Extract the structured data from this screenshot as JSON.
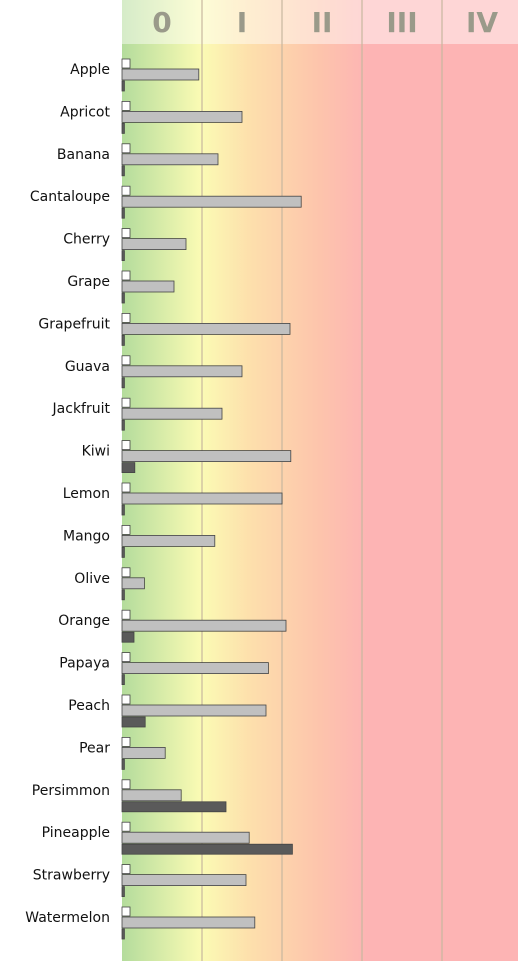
{
  "chart_data": {
    "type": "hbar",
    "zone_labels": [
      "0",
      "I",
      "II",
      "III",
      "IV"
    ],
    "categories": [
      "Apple",
      "Apricot",
      "Banana",
      "Cantaloupe",
      "Cherry",
      "Grape",
      "Grapefruit",
      "Guava",
      "Jackfruit",
      "Kiwi",
      "Lemon",
      "Mango",
      "Olive",
      "Orange",
      "Papaya",
      "Peach",
      "Pear",
      "Persimmon",
      "Pineapple",
      "Strawberry",
      "Watermelon"
    ],
    "series": [
      {
        "color": "#ffffff",
        "values": [
          0.1,
          0.1,
          0.1,
          0.1,
          0.1,
          0.1,
          0.1,
          0.1,
          0.1,
          0.1,
          0.1,
          0.1,
          0.1,
          0.1,
          0.1,
          0.1,
          0.1,
          0.1,
          0.1,
          0.1,
          0.1
        ]
      },
      {
        "color": "#c0c0c0",
        "values": [
          0.96,
          1.5,
          1.2,
          2.24,
          0.8,
          0.65,
          2.1,
          1.5,
          1.25,
          2.11,
          2.0,
          1.16,
          0.28,
          2.05,
          1.83,
          1.8,
          0.54,
          0.74,
          1.59,
          1.55,
          1.66
        ]
      },
      {
        "color": "#5a5a5a",
        "values": [
          0.03,
          0.03,
          0.03,
          0.03,
          0.03,
          0.03,
          0.03,
          0.03,
          0.03,
          0.16,
          0.03,
          0.03,
          0.03,
          0.15,
          0.03,
          0.29,
          0.03,
          1.3,
          2.13,
          0.03,
          0.03
        ]
      }
    ],
    "xlim": [
      0,
      4.95
    ],
    "xticks": [
      1,
      2,
      3,
      4
    ],
    "grid": true
  }
}
